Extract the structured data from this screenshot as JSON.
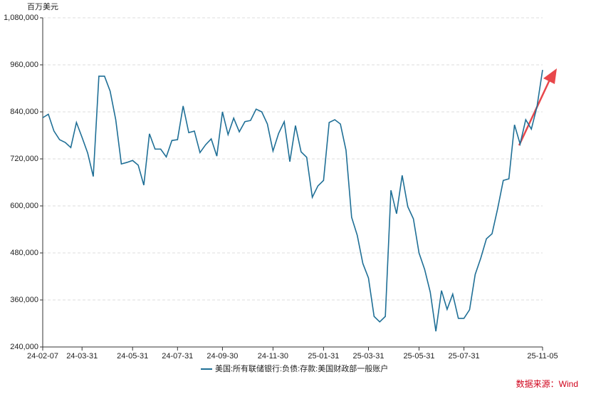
{
  "chart_data": {
    "type": "line",
    "y_label": "百万美元",
    "source": "数据来源：Wind",
    "categories": [
      "24-02-07",
      null,
      null,
      null,
      null,
      null,
      null,
      "24-03-31",
      null,
      null,
      null,
      null,
      null,
      null,
      null,
      null,
      "24-05-31",
      null,
      null,
      null,
      null,
      null,
      null,
      null,
      "24-07-31",
      null,
      null,
      null,
      null,
      null,
      null,
      null,
      "24-09-30",
      null,
      null,
      null,
      null,
      null,
      null,
      null,
      null,
      "24-11-30",
      null,
      null,
      null,
      null,
      null,
      null,
      null,
      null,
      "25-01-31",
      null,
      null,
      null,
      null,
      null,
      null,
      null,
      "25-03-31",
      null,
      null,
      null,
      null,
      null,
      null,
      null,
      null,
      "25-05-31",
      null,
      null,
      null,
      null,
      null,
      null,
      null,
      "25-07-31",
      null,
      null,
      null,
      null,
      null,
      null,
      null,
      null,
      null,
      null,
      null,
      null,
      null,
      "25-11-05"
    ],
    "series": [
      {
        "name": "美国:所有联储银行:负债:存款:美国财政部一般账户",
        "color": "#1f6f96",
        "values": [
          825000,
          834000,
          791000,
          769000,
          762000,
          749000,
          813000,
          775000,
          735000,
          675000,
          931000,
          931000,
          893000,
          820000,
          707000,
          711000,
          716000,
          704000,
          653000,
          784000,
          745000,
          745000,
          725000,
          767000,
          769000,
          855000,
          787000,
          791000,
          736000,
          756000,
          771000,
          727000,
          840000,
          782000,
          824000,
          789000,
          815000,
          818000,
          847000,
          840000,
          809000,
          740000,
          785000,
          815000,
          713000,
          805000,
          738000,
          724000,
          622000,
          651000,
          665000,
          813000,
          820000,
          809000,
          742000,
          571000,
          525000,
          453000,
          416000,
          318000,
          304000,
          318000,
          640000,
          580000,
          678000,
          598000,
          567000,
          480000,
          438000,
          380000,
          280000,
          384000,
          336000,
          375000,
          313000,
          313000,
          335000,
          425000,
          467000,
          516000,
          529000,
          593000,
          665000,
          669000,
          807000,
          758000,
          820000,
          796000,
          853000,
          947000
        ]
      }
    ],
    "ylim": [
      240000,
      1080000
    ],
    "yticks": [
      {
        "value": 240000,
        "label": "240,000"
      },
      {
        "value": 360000,
        "label": "360,000"
      },
      {
        "value": 480000,
        "label": "480,000"
      },
      {
        "value": 600000,
        "label": "600,000"
      },
      {
        "value": 720000,
        "label": "720,000"
      },
      {
        "value": 840000,
        "label": "840,000"
      },
      {
        "value": 960000,
        "label": "960,000"
      },
      {
        "value": 1080000,
        "label": "1,080,000"
      }
    ],
    "grid": true
  }
}
